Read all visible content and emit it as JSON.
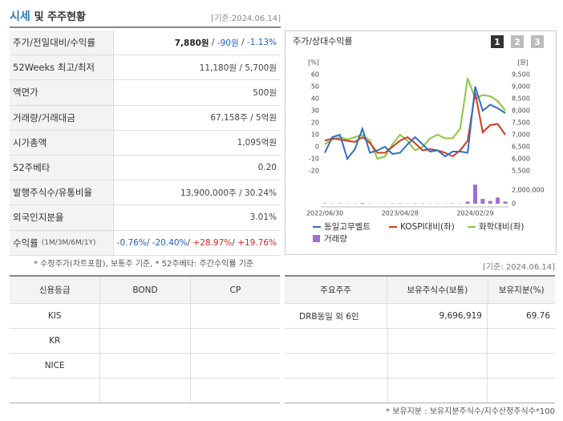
{
  "header": {
    "title": "시세",
    "title_sub": "및 주주현황",
    "date": "[기준:2024.06.14]"
  },
  "summary": {
    "rows": [
      {
        "label": "주가/전일대비/수익률",
        "value": [
          {
            "text": "7,880원",
            "color": "#222222"
          },
          {
            "text": " / "
          },
          {
            "text": "-90원",
            "color": "#1f5fc8"
          },
          {
            "text": " / "
          },
          {
            "text": "-1.13%",
            "color": "#1f5fc8"
          }
        ]
      },
      {
        "label": "52Weeks 최고/최저",
        "value": [
          {
            "text": "11,180원 / 5,700원"
          }
        ]
      },
      {
        "label": "액면가",
        "value": [
          {
            "text": "500원"
          }
        ]
      },
      {
        "label": "거래량/거래대금",
        "value": [
          {
            "text": "67,158주 / 5억원"
          }
        ]
      },
      {
        "label": "시가총액",
        "value": [
          {
            "text": "1,095억원"
          }
        ]
      },
      {
        "label": "52주베타",
        "value": [
          {
            "text": "0.20"
          }
        ]
      },
      {
        "label": "발행주식수/유통비율",
        "value": [
          {
            "text": "13,900,000주 / 30.24%"
          }
        ]
      },
      {
        "label": "외국인지분율",
        "value": [
          {
            "text": "3.01%"
          }
        ]
      },
      {
        "label": "수익률",
        "label_sub": "(1M/3M/6M/1Y)",
        "value": [
          {
            "text": "-0.76%",
            "color": "#1f5fc8"
          },
          {
            "text": "/ "
          },
          {
            "text": "-20.40%",
            "color": "#1f5fc8"
          },
          {
            "text": "/ "
          },
          {
            "text": "+28.97%",
            "color": "#d0281e"
          },
          {
            "text": "/ "
          },
          {
            "text": "+19.76%",
            "color": "#d0281e"
          }
        ]
      }
    ]
  },
  "chart": {
    "type": "line",
    "title": "주가/상대수익률",
    "tabs": [
      "1",
      "2",
      "3"
    ],
    "ylabel": "[%]",
    "y2label": "[원]",
    "categories": [
      "2022/06/30",
      null,
      null,
      null,
      null,
      null,
      null,
      null,
      null,
      null,
      "2023/04/28",
      null,
      null,
      null,
      null,
      null,
      null,
      null,
      null,
      null,
      "2024/02/29",
      null,
      null,
      null,
      null
    ],
    "ylim": [
      -20,
      60
    ],
    "yticks": [
      60,
      50,
      40,
      30,
      20,
      10,
      0,
      -10,
      -20
    ],
    "y2lim": [
      5500,
      9500
    ],
    "y2ticks": [
      {
        "value": 9500,
        "label": "9,500"
      },
      {
        "value": 9000,
        "label": "9,000"
      },
      {
        "value": 8500,
        "label": "8,500"
      },
      {
        "value": 8000,
        "label": "8,000"
      },
      {
        "value": 7500,
        "label": "7,500"
      },
      {
        "value": 7000,
        "label": "7,000"
      },
      {
        "value": 6500,
        "label": "6,500"
      },
      {
        "value": 6000,
        "label": "6,000"
      },
      {
        "value": 5500,
        "label": "5,500"
      }
    ],
    "series": [
      {
        "name": "동일고무벨트",
        "color": "#2f6fc9",
        "axis": "y2",
        "values": [
          6250,
          6900,
          7000,
          6000,
          6400,
          7250,
          6250,
          6350,
          6500,
          6200,
          6250,
          6600,
          6900,
          6600,
          6300,
          6350,
          6100,
          6300,
          6300,
          6250,
          9000,
          8000,
          8250,
          8100,
          7900
        ]
      },
      {
        "name": "KOSPI대비(좌)",
        "color": "#d43a1a",
        "values": [
          5,
          7,
          6,
          5,
          4,
          8,
          3,
          -5,
          -5,
          0,
          5,
          8,
          3,
          -3,
          -2,
          -3,
          -5,
          -8,
          -3,
          5,
          45,
          12,
          18,
          19,
          10
        ]
      },
      {
        "name": "화학대비(좌)",
        "color": "#8cc63f",
        "values": [
          2,
          6,
          8,
          6,
          8,
          10,
          5,
          -10,
          -8,
          2,
          10,
          5,
          -3,
          0,
          7,
          10,
          7,
          7,
          15,
          57,
          40,
          43,
          42,
          38,
          30
        ]
      }
    ],
    "volume": {
      "name": "거래량",
      "color": "#a070d0",
      "ylim": [
        0,
        3000000
      ],
      "yticks": [
        {
          "value": 2000000,
          "label": "2,000,000"
        },
        0
      ],
      "values": [
        60000,
        40000,
        50000,
        30000,
        40000,
        80000,
        30000,
        20000,
        30000,
        40000,
        60000,
        30000,
        50000,
        40000,
        30000,
        40000,
        30000,
        50000,
        40000,
        300000,
        2800000,
        700000,
        400000,
        900000,
        300000
      ]
    }
  },
  "note": "* 수정주가(차트포함), 보통주 기준, * 52주베타: 주간수익률 기준",
  "date2": "[기준: 2024.06.14]",
  "credit": {
    "headers": [
      "신용등급",
      "BOND",
      "CP"
    ],
    "rows": [
      [
        "KIS",
        "",
        ""
      ],
      [
        "KR",
        "",
        ""
      ],
      [
        "NICE",
        "",
        ""
      ],
      [
        "",
        "",
        ""
      ]
    ]
  },
  "holders": {
    "headers": [
      "주요주주",
      "보유주식수(보통)",
      "보유지분(%)"
    ],
    "rows": [
      [
        "DRB동일 외 6인",
        "9,696,919",
        "69.76"
      ],
      [
        "",
        "",
        ""
      ],
      [
        "",
        "",
        ""
      ],
      [
        "",
        "",
        ""
      ]
    ]
  },
  "footnote": "* 보유지분 : 보유지분주식수/지수산정주식수*100"
}
